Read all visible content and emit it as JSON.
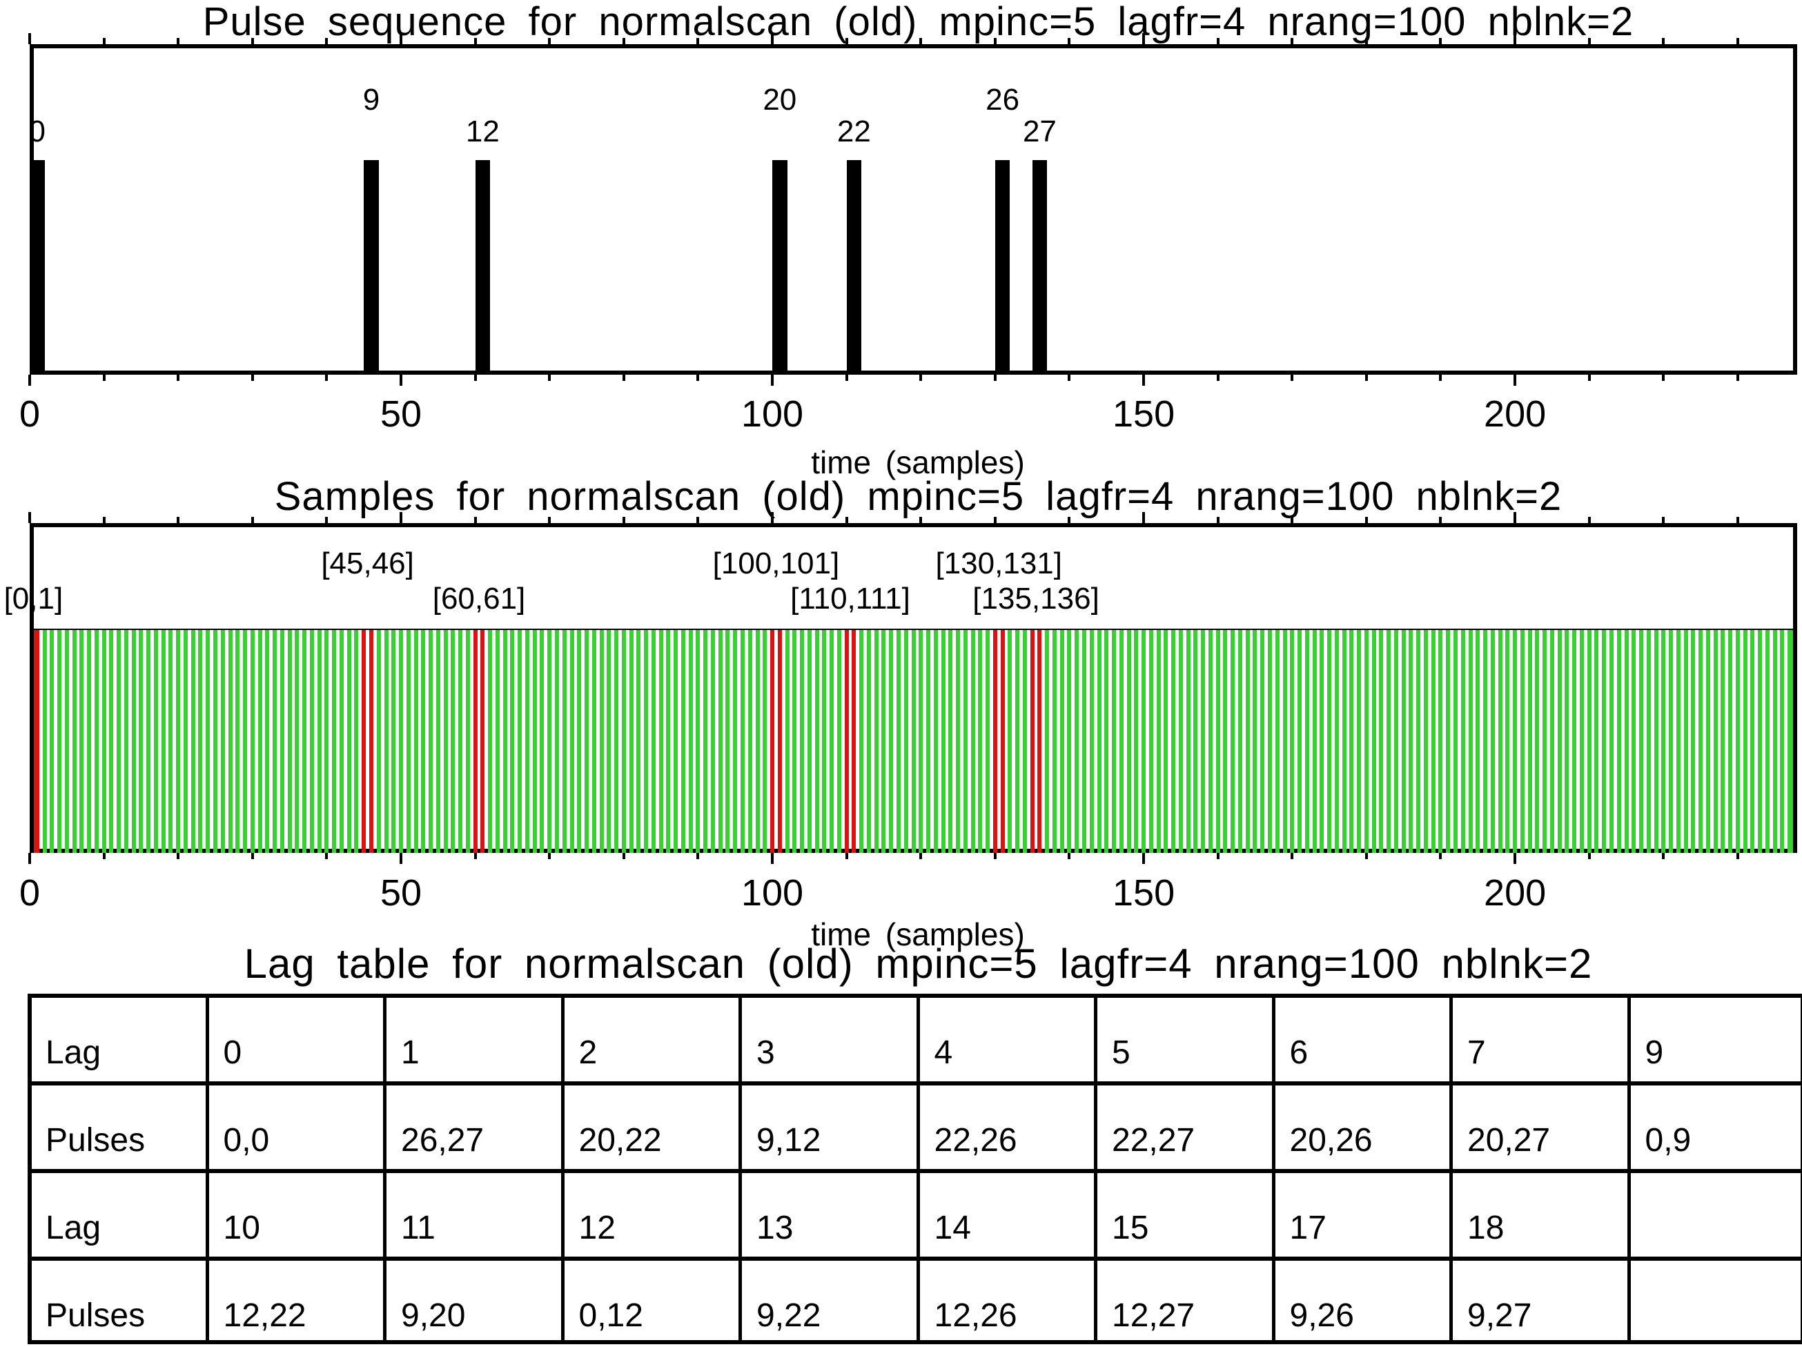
{
  "figure": {
    "background": "#ffffff",
    "ink": "#000000",
    "sample_green": "#37d232",
    "blank_red": "#de1111"
  },
  "axis": {
    "xlabel": "time (samples)",
    "major_ticks": [
      0,
      50,
      100,
      150,
      200
    ],
    "minor_step": 10,
    "x_max": 238
  },
  "chart_data": [
    {
      "type": "bar",
      "title": "Pulse sequence for normalscan (old) mpinc=5 lagfr=4 nrang=100 nblnk=2",
      "xlabel": "time (samples)",
      "xlim": [
        0,
        238
      ],
      "xticks": [
        0,
        50,
        100,
        150,
        200
      ],
      "bar_color": "#000000",
      "pulse_width_samples": 2,
      "pulses": [
        {
          "pulse": "0",
          "time": 0,
          "label_row": "low"
        },
        {
          "pulse": "9",
          "time": 45,
          "label_row": "high"
        },
        {
          "pulse": "12",
          "time": 60,
          "label_row": "low"
        },
        {
          "pulse": "20",
          "time": 100,
          "label_row": "high"
        },
        {
          "pulse": "22",
          "time": 110,
          "label_row": "low"
        },
        {
          "pulse": "26",
          "time": 130,
          "label_row": "high"
        },
        {
          "pulse": "27",
          "time": 135,
          "label_row": "low"
        }
      ]
    },
    {
      "type": "bar",
      "title": "Samples for normalscan (old) mpinc=5 lagfr=4 nrang=100 nblnk=2",
      "xlabel": "time (samples)",
      "xlim": [
        0,
        238
      ],
      "xticks": [
        0,
        50,
        100,
        150,
        200
      ],
      "n_samples": 239,
      "sample_color": "#37d232",
      "blanked_color": "#de1111",
      "blanked_samples": [
        0,
        1,
        45,
        46,
        60,
        61,
        100,
        101,
        110,
        111,
        130,
        131,
        135,
        136
      ],
      "blank_labels": [
        {
          "text": "[0,1]",
          "x": 0.5,
          "row": "low"
        },
        {
          "text": "[45,46]",
          "x": 45.5,
          "row": "high"
        },
        {
          "text": "[60,61]",
          "x": 60.5,
          "row": "low"
        },
        {
          "text": "[100,101]",
          "x": 100.5,
          "row": "high"
        },
        {
          "text": "[110,111]",
          "x": 110.5,
          "row": "low"
        },
        {
          "text": "[130,131]",
          "x": 130.5,
          "row": "high"
        },
        {
          "text": "[135,136]",
          "x": 135.5,
          "row": "low"
        }
      ]
    },
    {
      "type": "table",
      "title": "Lag table for normalscan (old) mpinc=5 lagfr=4 nrang=100 nblnk=2",
      "rows": [
        [
          "Lag",
          "0",
          "1",
          "2",
          "3",
          "4",
          "5",
          "6",
          "7",
          "9"
        ],
        [
          "Pulses",
          "0,0",
          "26,27",
          "20,22",
          "9,12",
          "22,26",
          "22,27",
          "20,26",
          "20,27",
          "0,9"
        ],
        [
          "Lag",
          "10",
          "11",
          "12",
          "13",
          "14",
          "15",
          "17",
          "18",
          ""
        ],
        [
          "Pulses",
          "12,22",
          "9,20",
          "0,12",
          "9,22",
          "12,26",
          "12,27",
          "9,26",
          "9,27",
          ""
        ]
      ]
    }
  ]
}
